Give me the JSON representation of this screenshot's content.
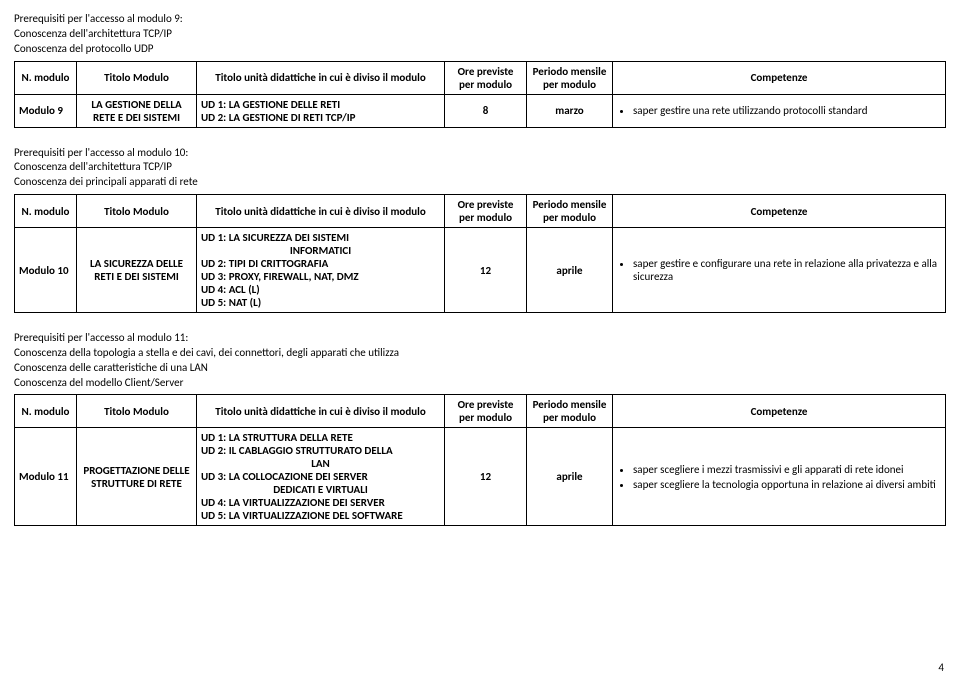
{
  "page_number": "4",
  "sections": [
    {
      "prereq_lines": [
        "Prerequisiti per l'accesso al modulo 9:",
        "Conoscenza dell'architettura TCP/IP",
        "Conoscenza del protocollo UDP"
      ],
      "header": {
        "n": "N. modulo",
        "titolo": "Titolo Modulo",
        "ud": "Titolo unità didattiche in cui è diviso il modulo",
        "ore": "Ore previste per modulo",
        "periodo": "Periodo mensile per modulo",
        "comp": "Competenze"
      },
      "row": {
        "n": "Modulo 9",
        "titolo": "LA GESTIONE DELLA RETE E DEI SISTEMI",
        "ud_lines": [
          "UD 1: LA GESTIONE DELLE RETI",
          "UD 2: LA GESTIONE DI RETI TCP/IP"
        ],
        "ore": "8",
        "periodo": "marzo",
        "comps": [
          "saper gestire una rete utilizzando protocolli standard"
        ]
      }
    },
    {
      "prereq_lines": [
        "Prerequisiti per l'accesso al modulo 10:",
        "Conoscenza dell'architettura TCP/IP",
        "Conoscenza dei principali apparati di rete"
      ],
      "header": {
        "n": "N. modulo",
        "titolo": "Titolo Modulo",
        "ud": "Titolo unità didattiche in cui è diviso il modulo",
        "ore": "Ore previste per modulo",
        "periodo": "Periodo mensile per modulo",
        "comp": "Competenze"
      },
      "row": {
        "n": "Modulo 10",
        "titolo": "LA SICUREZZA DELLE RETI E DEI SISTEMI",
        "ud_lines_with_sub": [
          {
            "main": "UD 1: LA SICUREZZA DEI SISTEMI",
            "sub": "INFORMATICI"
          },
          {
            "main": "UD 2: TIPI DI CRITTOGRAFIA"
          },
          {
            "main": "UD 3: PROXY, FIREWALL, NAT, DMZ"
          },
          {
            "main": "UD 4: ACL (L)"
          },
          {
            "main": "UD 5: NAT (L)"
          }
        ],
        "ore": "12",
        "periodo": "aprile",
        "comps": [
          "saper gestire e configurare una rete in relazione alla privatezza e alla sicurezza"
        ]
      }
    },
    {
      "prereq_lines": [
        "Prerequisiti per l'accesso al modulo 11:",
        "Conoscenza della topologia a stella e dei cavi, dei connettori, degli apparati che utilizza",
        "Conoscenza delle caratteristiche di una LAN",
        "Conoscenza del modello Client/Server"
      ],
      "header": {
        "n": "N. modulo",
        "titolo": "Titolo Modulo",
        "ud": "Titolo unità didattiche in cui è diviso il modulo",
        "ore": "Ore previste per modulo",
        "periodo": "Periodo mensile per modulo",
        "comp": "Competenze"
      },
      "row": {
        "n": "Modulo 11",
        "titolo": "PROGETTAZIONE DELLE STRUTTURE DI RETE",
        "ud_lines_with_sub": [
          {
            "main": "UD 1: LA STRUTTURA DELLA RETE"
          },
          {
            "main": "UD 2: IL CABLAGGIO STRUTTURATO DELLA",
            "sub": "LAN"
          },
          {
            "main": "UD 3: LA COLLOCAZIONE DEI SERVER",
            "sub": "DEDICATI E VIRTUALI"
          },
          {
            "main": "UD 4: LA VIRTUALIZZAZIONE DEI SERVER"
          },
          {
            "main": "UD 5: LA VIRTUALIZZAZIONE DEL SOFTWARE"
          }
        ],
        "ore": "12",
        "periodo": "aprile",
        "comps": [
          "saper scegliere i mezzi trasmissivi e gli apparati di rete idonei",
          "saper scegliere la tecnologia opportuna in relazione ai diversi ambiti"
        ]
      }
    }
  ]
}
